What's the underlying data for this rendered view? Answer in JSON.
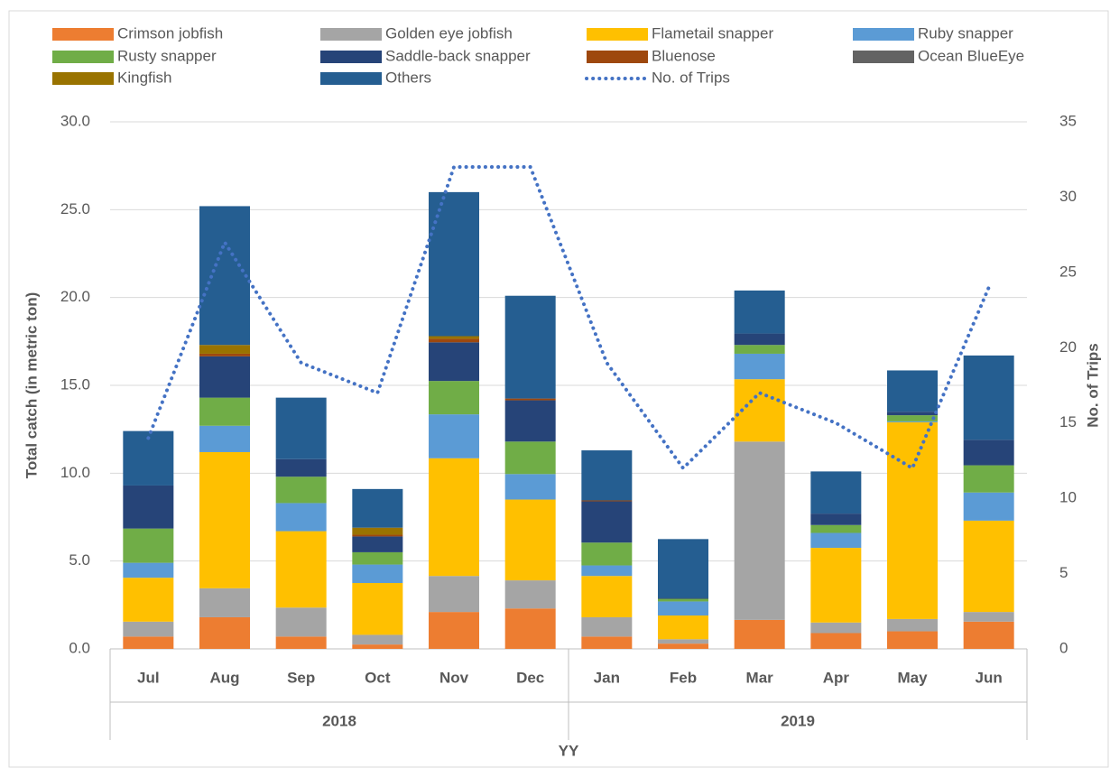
{
  "chart_data": {
    "type": "stacked_bar_line",
    "y_label": "Total catch (in metric ton)",
    "y2_label": "No. of Trips",
    "x_label": "YY",
    "category_groups": [
      {
        "name": "2018",
        "categories": [
          "Jul",
          "Aug",
          "Sep",
          "Oct",
          "Nov",
          "Dec"
        ]
      },
      {
        "name": "2019",
        "categories": [
          "Jan",
          "Feb",
          "Mar",
          "Apr",
          "May",
          "Jun"
        ]
      }
    ],
    "series": [
      {
        "name": "Crimson jobfish",
        "color": "#ed7d31",
        "values": [
          0.7,
          1.8,
          0.7,
          0.25,
          2.1,
          2.3,
          0.7,
          0.3,
          1.65,
          0.9,
          1.0,
          1.55
        ]
      },
      {
        "name": "Golden eye jobfish",
        "color": "#a5a5a5",
        "values": [
          0.85,
          1.65,
          1.65,
          0.55,
          2.05,
          1.6,
          1.1,
          0.25,
          10.15,
          0.6,
          0.7,
          0.55
        ]
      },
      {
        "name": "Flametail snapper",
        "color": "#ffc000",
        "values": [
          2.5,
          7.75,
          4.35,
          2.95,
          6.7,
          4.6,
          2.35,
          1.35,
          3.55,
          4.25,
          11.2,
          5.2
        ]
      },
      {
        "name": "Ruby snapper",
        "color": "#5b9bd5",
        "values": [
          0.85,
          1.5,
          1.6,
          1.05,
          2.5,
          1.45,
          0.6,
          0.8,
          1.45,
          0.85,
          0.05,
          1.6
        ]
      },
      {
        "name": "Rusty snapper",
        "color": "#70ad47",
        "values": [
          1.95,
          1.6,
          1.5,
          0.7,
          1.9,
          1.85,
          1.3,
          0.15,
          0.5,
          0.45,
          0.35,
          1.55
        ]
      },
      {
        "name": "Saddle-back snapper",
        "color": "#264478",
        "values": [
          2.45,
          2.35,
          1.0,
          0.9,
          2.2,
          2.35,
          2.35,
          0.05,
          0.65,
          0.65,
          0.2,
          1.45
        ]
      },
      {
        "name": "Bluenose",
        "color": "#9e480e",
        "values": [
          0,
          0.15,
          0,
          0.1,
          0.2,
          0.1,
          0.05,
          0,
          0,
          0,
          0,
          0
        ]
      },
      {
        "name": "Ocean BlueEye",
        "color": "#636363",
        "values": [
          0,
          0,
          0,
          0,
          0,
          0,
          0,
          0,
          0,
          0,
          0,
          0
        ]
      },
      {
        "name": "Kingfish",
        "color": "#997300",
        "values": [
          0,
          0.5,
          0,
          0.4,
          0.15,
          0,
          0,
          0,
          0,
          0,
          0,
          0
        ]
      },
      {
        "name": "Others",
        "color": "#255e91",
        "values": [
          3.1,
          7.9,
          3.5,
          2.2,
          8.2,
          5.85,
          2.85,
          3.35,
          2.45,
          2.4,
          2.35,
          4.8
        ]
      },
      {
        "name": "No. of Trips",
        "color": "#4472c4",
        "axis": "y2",
        "type": "line",
        "values": [
          14,
          27,
          19,
          17,
          32,
          32,
          19,
          12,
          17,
          15,
          12,
          24
        ]
      }
    ],
    "ylim": [
      0,
      30
    ],
    "yticks": [
      {
        "value": 0,
        "label": "0.0"
      },
      {
        "value": 5,
        "label": "5.0"
      },
      {
        "value": 10,
        "label": "10.0"
      },
      {
        "value": 15,
        "label": "15.0"
      },
      {
        "value": 20,
        "label": "20.0"
      },
      {
        "value": 25,
        "label": "25.0"
      },
      {
        "value": 30,
        "label": "30.0"
      }
    ],
    "y2lim": [
      0,
      35
    ],
    "y2ticks": [
      0,
      5,
      10,
      15,
      20,
      25,
      30,
      35
    ],
    "grid": true,
    "legend": "top"
  }
}
